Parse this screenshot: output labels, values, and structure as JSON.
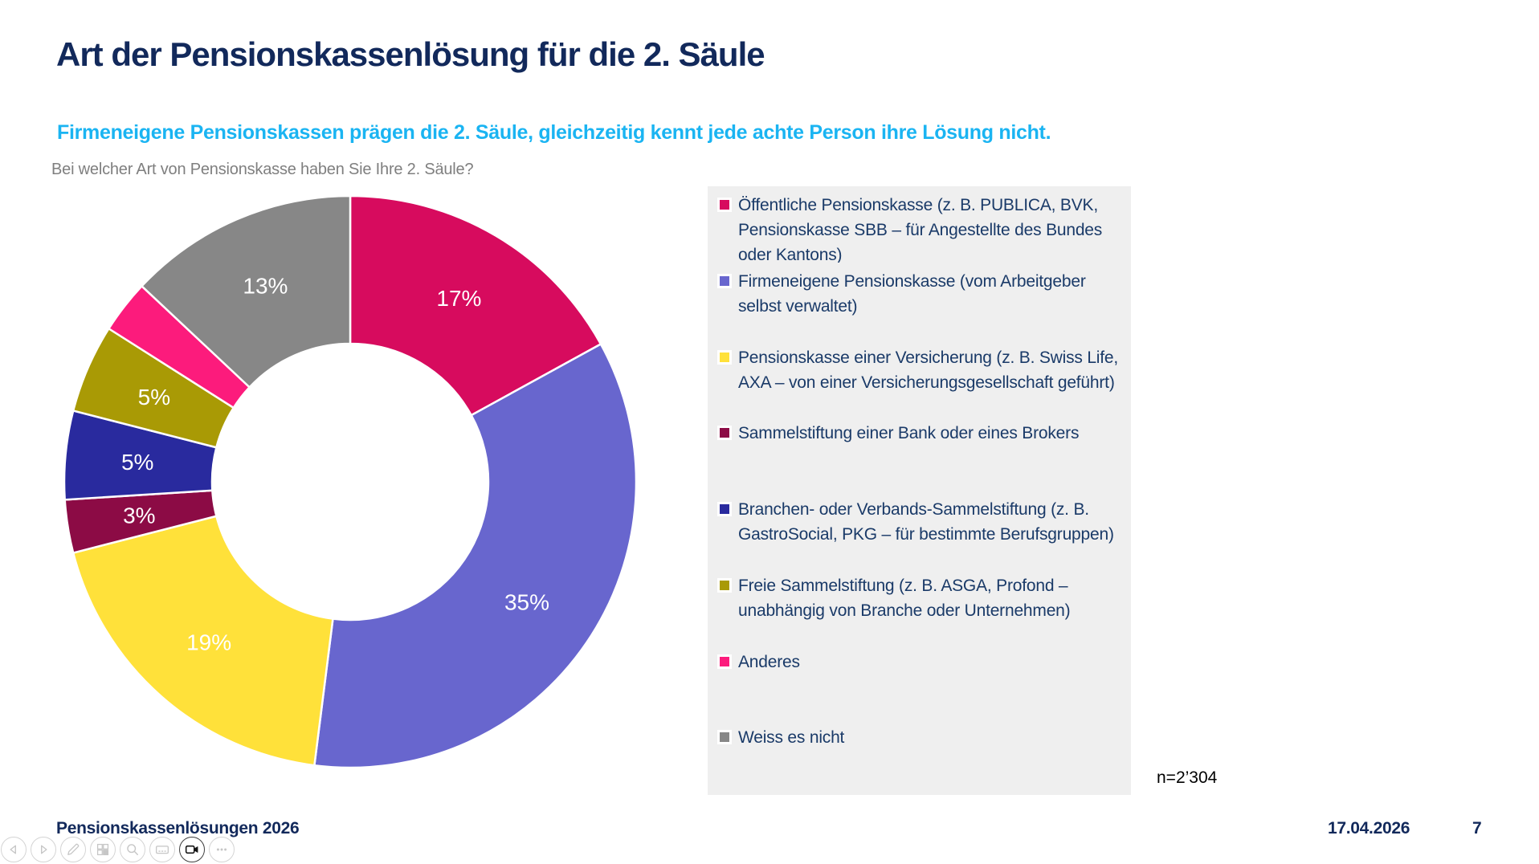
{
  "slide": {
    "title": "Art der Pensionskassenlösung für die 2. Säule",
    "subtitle": "Firmeneigene Pensionskassen prägen die 2. Säule, gleichzeitig kennt jede achte Person ihre Lösung nicht.",
    "question": "Bei welcher Art von Pensionskasse haben Sie Ihre 2. Säule?",
    "sample_label": "n=2’304",
    "footer": {
      "left": "Pensionskassenlösungen 2026",
      "date": "17.04.2026",
      "page": "7"
    }
  },
  "colors": {
    "title_text": "#12295B",
    "subtitle_text": "#1AB4F2",
    "question_text": "#7F7F7F",
    "legend_text": "#1A3A68",
    "legend_background": "#EFEFEF",
    "slice_border": "#FFFFFF",
    "data_label_text": "#FFFFFF"
  },
  "chart_data": {
    "type": "pie",
    "donut": true,
    "title": "Bei welcher Art von Pensionskasse haben Sie Ihre 2. Säule?",
    "start_angle_deg": 0,
    "direction": "clockwise",
    "inner_radius_ratio": 0.48,
    "legend_position": "right",
    "n_label": "n=2’304",
    "series": [
      {
        "label": "Öffentliche Pensionskasse (z. B. PUBLICA, BVK, Pensionskasse SBB – für Angestellte des Bundes oder Kantons)",
        "value": 17,
        "data_label": "17%",
        "color": "#D70B5E"
      },
      {
        "label": "Firmeneigene Pensionskasse (vom Arbeitgeber selbst verwaltet)",
        "value": 35,
        "data_label": "35%",
        "color": "#6866CE"
      },
      {
        "label": "Pensionskasse einer Versicherung (z. B. Swiss Life, AXA – von einer Versicherungsgesellschaft geführt)",
        "value": 19,
        "data_label": "19%",
        "color": "#FFE13A"
      },
      {
        "label": "Sammelstiftung einer Bank oder eines Brokers",
        "value": 3,
        "data_label": "3%",
        "color": "#8C0B45"
      },
      {
        "label": "Branchen- oder Verbands-Sammelstiftung (z. B. GastroSocial, PKG – für bestimmte Berufsgruppen)",
        "value": 5,
        "data_label": "5%",
        "color": "#292A9E"
      },
      {
        "label": "Freie Sammelstiftung (z. B. ASGA, Profond – unabhängig von Branche oder Unternehmen)",
        "value": 5,
        "data_label": "5%",
        "color": "#A99A05"
      },
      {
        "label": "Anderes",
        "value": 3,
        "data_label": "",
        "color": "#FC1B7C"
      },
      {
        "label": "Weiss es nicht",
        "value": 13,
        "data_label": "13%",
        "color": "#878787"
      }
    ]
  },
  "toolbar": {
    "buttons": [
      {
        "name": "prev-slide",
        "icon": "previous-icon",
        "active": false
      },
      {
        "name": "next-slide",
        "icon": "next-icon",
        "active": false
      },
      {
        "name": "pen",
        "icon": "pen-icon",
        "active": false
      },
      {
        "name": "slide-overview",
        "icon": "slide-overview-icon",
        "active": false
      },
      {
        "name": "zoom",
        "icon": "magnifier-icon",
        "active": false
      },
      {
        "name": "captions",
        "icon": "captions-icon",
        "active": false
      },
      {
        "name": "camera",
        "icon": "camera-icon",
        "active": true
      },
      {
        "name": "more-options",
        "icon": "more-icon",
        "active": false
      }
    ]
  }
}
